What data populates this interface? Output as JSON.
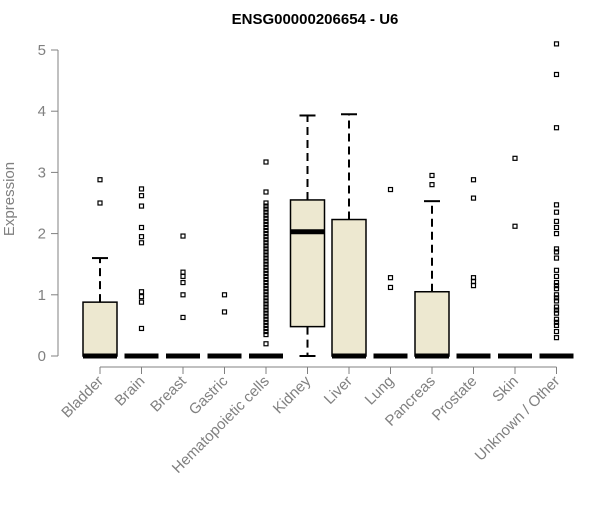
{
  "chart_data": {
    "type": "box",
    "title": "ENSG00000206654 - U6",
    "xlabel": "",
    "ylabel": "Expression",
    "ylim": [
      0,
      5.2
    ],
    "yticks": [
      0,
      1,
      2,
      3,
      4,
      5
    ],
    "grid": false,
    "legend": "none",
    "colors": {
      "box_fill": "#EDE8D0",
      "box_stroke": "#000000",
      "axis": "#808080",
      "tick_text": "#808080",
      "title_text": "#000000"
    },
    "categories": [
      "Bladder",
      "Brain",
      "Breast",
      "Gastric",
      "Hematopoietic cells",
      "Kidney",
      "Liver",
      "Lung",
      "Pancreas",
      "Prostate",
      "Skin",
      "Unknown / Other"
    ],
    "boxes": [
      {
        "category": "Bladder",
        "q1": 0,
        "median": 0,
        "q3": 0.88,
        "whisker_low": 0,
        "whisker_high": 1.6,
        "outliers": [
          2.5,
          2.88
        ]
      },
      {
        "category": "Brain",
        "q1": 0,
        "median": 0,
        "q3": 0,
        "whisker_low": 0,
        "whisker_high": 0,
        "outliers": [
          0.45,
          0.88,
          0.97,
          1.05,
          1.85,
          1.95,
          2.1,
          2.45,
          2.62,
          2.73
        ]
      },
      {
        "category": "Breast",
        "q1": 0,
        "median": 0,
        "q3": 0,
        "whisker_low": 0,
        "whisker_high": 0,
        "outliers": [
          0.63,
          1.0,
          1.2,
          1.3,
          1.37,
          1.96
        ]
      },
      {
        "category": "Gastric",
        "q1": 0,
        "median": 0,
        "q3": 0,
        "whisker_low": 0,
        "whisker_high": 0,
        "outliers": [
          0.72,
          1.0
        ]
      },
      {
        "category": "Hematopoietic cells",
        "q1": 0,
        "median": 0,
        "q3": 0,
        "whisker_low": 0,
        "whisker_high": 0,
        "outliers": [
          0.2,
          0.35,
          0.4,
          0.45,
          0.5,
          0.55,
          0.6,
          0.65,
          0.7,
          0.75,
          0.8,
          0.85,
          0.9,
          0.95,
          1.0,
          1.05,
          1.1,
          1.15,
          1.2,
          1.25,
          1.3,
          1.35,
          1.4,
          1.45,
          1.5,
          1.55,
          1.6,
          1.65,
          1.7,
          1.75,
          1.8,
          1.85,
          1.9,
          1.95,
          2.0,
          2.05,
          2.1,
          2.15,
          2.2,
          2.25,
          2.3,
          2.35,
          2.4,
          2.45,
          2.5,
          2.68,
          3.17
        ]
      },
      {
        "category": "Kidney",
        "q1": 0.48,
        "median": 2.03,
        "q3": 2.55,
        "whisker_low": 0,
        "whisker_high": 3.93,
        "outliers": []
      },
      {
        "category": "Liver",
        "q1": 0,
        "median": 0,
        "q3": 2.23,
        "whisker_low": 0,
        "whisker_high": 3.95,
        "outliers": []
      },
      {
        "category": "Lung",
        "q1": 0,
        "median": 0,
        "q3": 0,
        "whisker_low": 0,
        "whisker_high": 0,
        "outliers": [
          1.12,
          1.28,
          2.72
        ]
      },
      {
        "category": "Pancreas",
        "q1": 0,
        "median": 0,
        "q3": 1.05,
        "whisker_low": 0,
        "whisker_high": 2.53,
        "outliers": [
          2.8,
          2.95
        ]
      },
      {
        "category": "Prostate",
        "q1": 0,
        "median": 0,
        "q3": 0,
        "whisker_low": 0,
        "whisker_high": 0,
        "outliers": [
          1.15,
          1.22,
          1.28,
          2.58,
          2.88
        ]
      },
      {
        "category": "Skin",
        "q1": 0,
        "median": 0,
        "q3": 0,
        "whisker_low": 0,
        "whisker_high": 0,
        "outliers": [
          2.12,
          3.23
        ]
      },
      {
        "category": "Unknown / Other",
        "q1": 0,
        "median": 0,
        "q3": 0,
        "whisker_low": 0,
        "whisker_high": 0,
        "outliers": [
          0.3,
          0.4,
          0.5,
          0.55,
          0.6,
          0.7,
          0.75,
          0.8,
          0.9,
          0.95,
          1.0,
          1.1,
          1.15,
          1.2,
          1.3,
          1.4,
          1.6,
          1.7,
          1.75,
          2.0,
          2.1,
          2.2,
          2.35,
          2.47,
          3.73,
          4.6,
          5.1
        ]
      }
    ]
  }
}
